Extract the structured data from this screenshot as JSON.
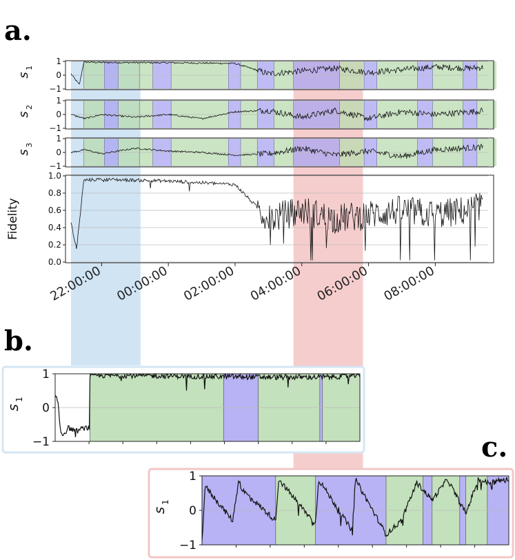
{
  "panel_labels": {
    "a": "a.",
    "b": "b.",
    "c": "c."
  },
  "colors": {
    "green": "#b9dcb0",
    "blue": "#aaa6f2",
    "highlight_blue": "#bcd8ef",
    "highlight_red": "#f2b8b8",
    "border_blue": "#d4e6f4",
    "border_red": "#f3c6c6",
    "trace": "#111111",
    "grid": "#bbbbbb"
  },
  "chart_data": [
    {
      "panel": "a",
      "type": "line",
      "x_axis": {
        "type": "time",
        "tick_labels": [
          "22:00:00",
          "00:00:00",
          "02:00:00",
          "04:00:00",
          "06:00:00",
          "08:00:00"
        ],
        "range": [
          "21:05",
          "09:35"
        ]
      },
      "highlights": [
        {
          "color": "blue",
          "from": "21:05",
          "to": "23:10"
        },
        {
          "color": "red",
          "from": "03:45",
          "to": "05:50"
        }
      ],
      "background_segments": [
        {
          "color": "green",
          "from": "21:28",
          "to": "22:05"
        },
        {
          "color": "blue",
          "from": "22:05",
          "to": "22:30"
        },
        {
          "color": "green",
          "from": "22:30",
          "to": "23:08"
        },
        {
          "color": "green",
          "from": "23:08",
          "to": "23:32"
        },
        {
          "color": "blue",
          "from": "23:32",
          "to": "24:05"
        },
        {
          "color": "green",
          "from": "24:05",
          "to": "25:48"
        },
        {
          "color": "blue",
          "from": "25:48",
          "to": "26:10"
        },
        {
          "color": "green",
          "from": "26:10",
          "to": "26:40"
        },
        {
          "color": "blue",
          "from": "26:40",
          "to": "27:10"
        },
        {
          "color": "green",
          "from": "27:10",
          "to": "27:45"
        },
        {
          "color": "blue",
          "from": "27:45",
          "to": "29:08"
        },
        {
          "color": "green",
          "from": "29:08",
          "to": "29:52"
        },
        {
          "color": "blue",
          "from": "29:52",
          "to": "30:15"
        },
        {
          "color": "green",
          "from": "30:15",
          "to": "31:28"
        },
        {
          "color": "blue",
          "from": "31:28",
          "to": "31:55"
        },
        {
          "color": "green",
          "from": "31:55",
          "to": "32:50"
        },
        {
          "color": "blue",
          "from": "32:50",
          "to": "33:15"
        },
        {
          "color": "green",
          "from": "33:15",
          "to": "33:50"
        }
      ],
      "subplots": [
        {
          "ylabel": "s1",
          "yticks": [
            "1",
            "0",
            "−1"
          ],
          "ylim": [
            -1,
            1
          ],
          "series": [
            {
              "x": [
                "21:05",
                "21:20",
                "21:28",
                "22:00",
                "00:00",
                "02:00",
                "03:00",
                "04:00",
                "05:00",
                "06:00",
                "07:00",
                "08:00",
                "09:00",
                "09:35"
              ],
              "y": [
                0.1,
                -0.7,
                0.95,
                0.92,
                0.9,
                0.85,
                0.1,
                0.3,
                0.5,
                0.2,
                0.4,
                0.6,
                0.5,
                0.6
              ]
            }
          ]
        },
        {
          "ylabel": "s2",
          "yticks": [
            "1",
            "0",
            "−1"
          ],
          "ylim": [
            -1,
            1
          ],
          "series": [
            {
              "x": [
                "21:05",
                "21:30",
                "22:00",
                "23:00",
                "00:00",
                "01:00",
                "02:00",
                "03:00",
                "04:00",
                "05:00",
                "06:00",
                "07:00",
                "08:00",
                "09:35"
              ],
              "y": [
                0.0,
                -0.3,
                0.0,
                -0.2,
                0.0,
                -0.3,
                0.2,
                0.3,
                -0.2,
                0.3,
                -0.3,
                0.2,
                0.0,
                0.3
              ]
            }
          ]
        },
        {
          "ylabel": "s3",
          "yticks": [
            "1",
            "0",
            "−1"
          ],
          "ylim": [
            -1,
            1
          ],
          "series": [
            {
              "x": [
                "21:05",
                "21:30",
                "22:00",
                "23:00",
                "00:00",
                "01:00",
                "02:00",
                "03:00",
                "04:00",
                "05:00",
                "06:00",
                "07:00",
                "08:00",
                "09:35"
              ],
              "y": [
                0.0,
                0.2,
                -0.1,
                0.3,
                0.1,
                0.0,
                -0.2,
                -0.1,
                0.3,
                -0.2,
                0.1,
                -0.3,
                0.2,
                0.4
              ]
            }
          ]
        },
        {
          "ylabel": "Fidelity",
          "yticks": [
            "1.0",
            "0.8",
            "0.6",
            "0.4",
            "0.2",
            "0.0"
          ],
          "ylim": [
            0,
            1
          ],
          "series": [
            {
              "x": [
                "21:05",
                "21:15",
                "21:28",
                "22:00",
                "23:00",
                "00:00",
                "01:00",
                "02:00",
                "03:00",
                "04:00",
                "05:00",
                "06:00",
                "07:00",
                "08:00",
                "09:00",
                "09:35"
              ],
              "y": [
                0.45,
                0.15,
                0.95,
                0.96,
                0.95,
                0.94,
                0.92,
                0.9,
                0.5,
                0.6,
                0.5,
                0.55,
                0.6,
                0.55,
                0.6,
                0.7
              ]
            }
          ]
        }
      ]
    },
    {
      "panel": "b",
      "type": "line",
      "ylabel": "s1",
      "yticks": [
        "1",
        "0",
        "−1"
      ],
      "ylim": [
        -1,
        1
      ],
      "background_segments": [
        {
          "color": "green",
          "from": 0.13,
          "to": 0.63
        },
        {
          "color": "blue",
          "from": 0.63,
          "to": 0.76
        },
        {
          "color": "green",
          "from": 0.76,
          "to": 0.99
        },
        {
          "color": "blue",
          "from": 0.99,
          "to": 1.0
        },
        {
          "color": "green",
          "from": 1.0,
          "to": 1.14
        }
      ],
      "series": [
        {
          "x": [
            0.0,
            0.01,
            0.02,
            0.03,
            0.05,
            0.08,
            0.11,
            0.13,
            0.13,
            0.3,
            0.6,
            0.8,
            1.0,
            1.14
          ],
          "y": [
            0.3,
            0.2,
            -0.7,
            -0.8,
            -0.6,
            -0.7,
            -0.6,
            -0.6,
            0.95,
            0.95,
            0.92,
            0.9,
            0.9,
            0.95
          ]
        }
      ]
    },
    {
      "panel": "c",
      "type": "line",
      "ylabel": "s1",
      "yticks": [
        "1",
        "0",
        "−1"
      ],
      "ylim": [
        -1,
        1
      ],
      "background_segments": [
        {
          "color": "blue",
          "from": 0.0,
          "to": 0.24
        },
        {
          "color": "green",
          "from": 0.24,
          "to": 0.37
        },
        {
          "color": "blue",
          "from": 0.37,
          "to": 0.6
        },
        {
          "color": "green",
          "from": 0.6,
          "to": 0.72
        },
        {
          "color": "blue",
          "from": 0.72,
          "to": 0.75
        },
        {
          "color": "green",
          "from": 0.75,
          "to": 0.84
        },
        {
          "color": "blue",
          "from": 0.84,
          "to": 0.86
        },
        {
          "color": "green",
          "from": 0.86,
          "to": 0.93
        },
        {
          "color": "blue",
          "from": 0.93,
          "to": 1.0
        }
      ],
      "series": [
        {
          "x": [
            0.0,
            0.01,
            0.1,
            0.12,
            0.13,
            0.24,
            0.25,
            0.37,
            0.38,
            0.49,
            0.5,
            0.6,
            0.65,
            0.7,
            0.75,
            0.8,
            0.86,
            0.9,
            0.93,
            1.0
          ],
          "y": [
            -0.9,
            0.7,
            -0.3,
            0.9,
            0.6,
            -0.3,
            0.9,
            -0.4,
            0.9,
            -0.6,
            0.9,
            -0.7,
            -0.3,
            0.8,
            0.3,
            0.9,
            -0.1,
            0.9,
            0.8,
            0.9
          ]
        }
      ]
    }
  ]
}
